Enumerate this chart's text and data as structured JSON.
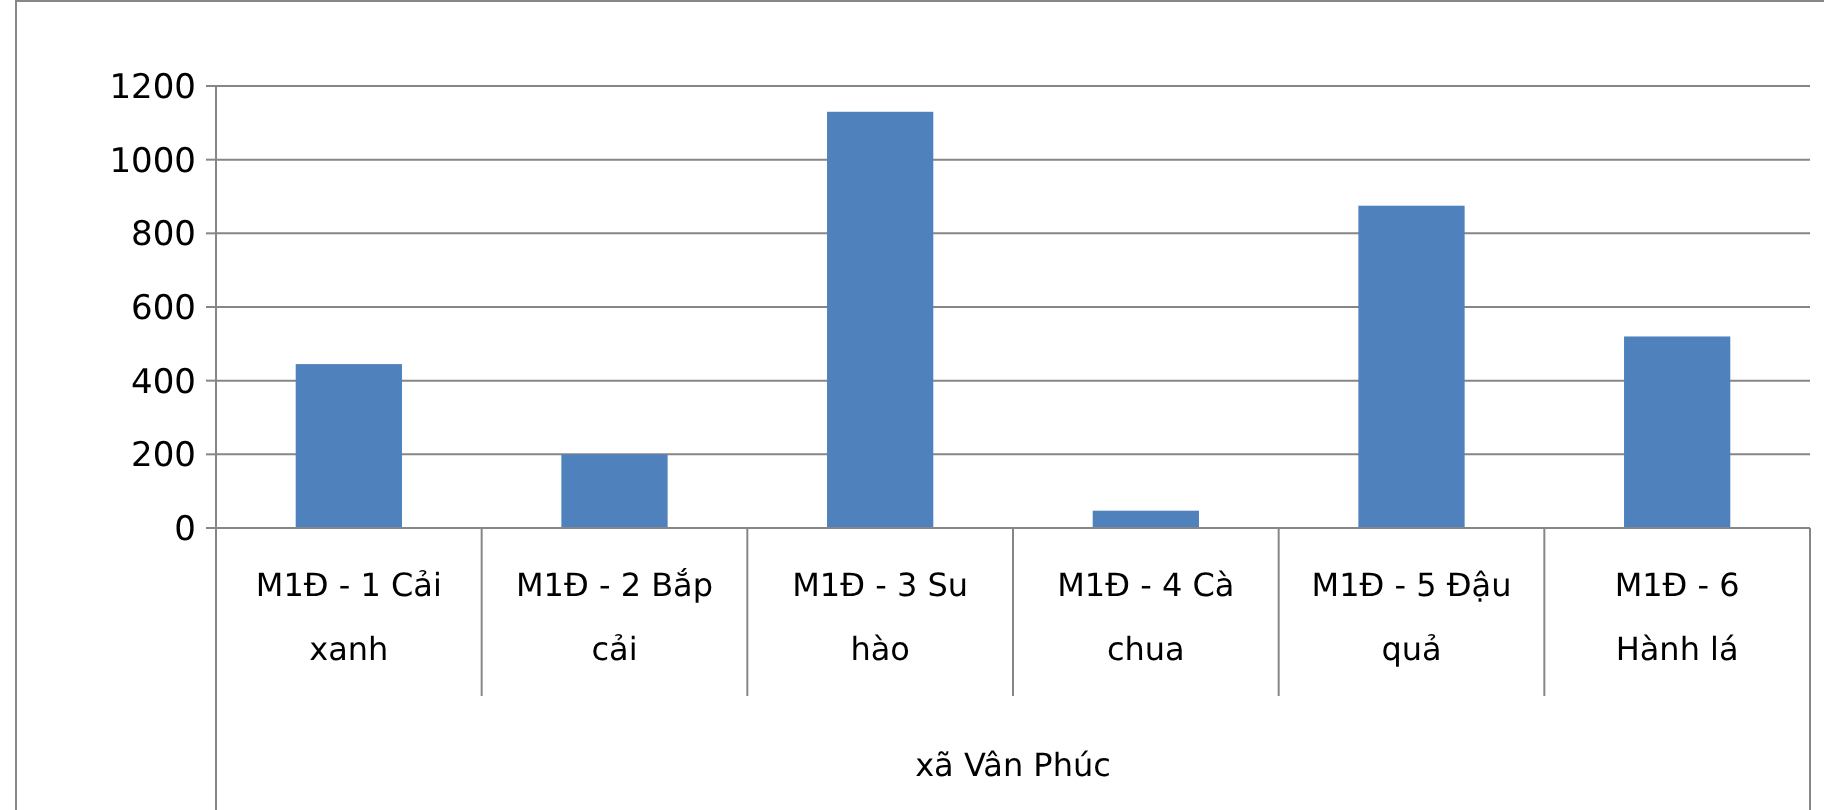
{
  "chart_data": {
    "type": "bar",
    "categories": [
      "M1Đ - 1 Cải xanh",
      "M1Đ - 2 Bắp cải",
      "M1Đ - 3 Su hào",
      "M1Đ - 4 Cà chua",
      "M1Đ - 5 Đậu quả",
      "M1Đ - 6 Hành lá"
    ],
    "values": [
      445,
      200,
      1130,
      47,
      875,
      520
    ],
    "color": "#4f81bd",
    "xlabel": "xã Vân Phúc",
    "ylim": [
      0,
      1200
    ],
    "yticks": [
      0,
      200,
      400,
      600,
      800,
      1000,
      1200
    ],
    "grid": "y"
  }
}
